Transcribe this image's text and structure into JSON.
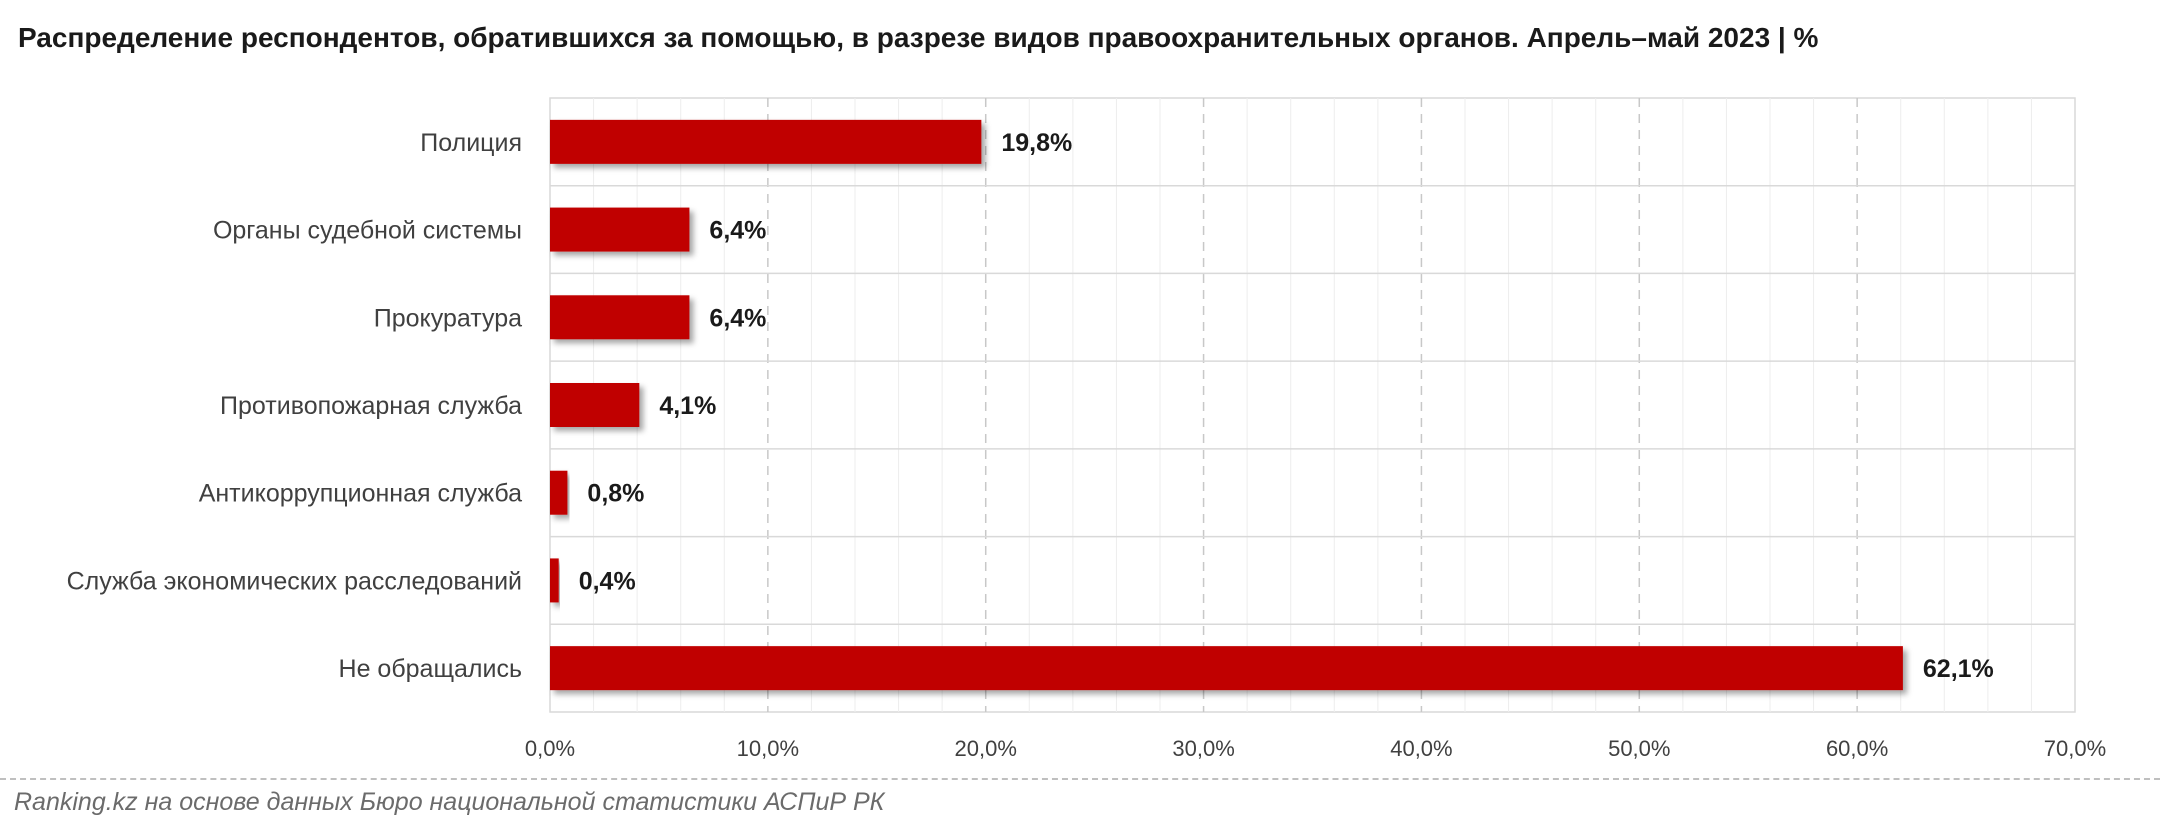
{
  "chart_data": {
    "type": "bar",
    "orientation": "horizontal",
    "title": "Распределение респондентов, обратившихся за помощью, в разрезе видов правоохранительных органов. Апрель–май 2023 | %",
    "categories": [
      "Полиция",
      "Органы судебной системы",
      "Прокуратура",
      "Противопожарная служба",
      "Антикоррупционная служба",
      "Служба экономических расследований",
      "Не обращались"
    ],
    "values": [
      19.8,
      6.4,
      6.4,
      4.1,
      0.8,
      0.4,
      62.1
    ],
    "value_labels": [
      "19,8%",
      "6,4%",
      "6,4%",
      "4,1%",
      "0,8%",
      "0,4%",
      "62,1%"
    ],
    "xlim": [
      0,
      70
    ],
    "x_ticks": [
      0,
      10,
      20,
      30,
      40,
      50,
      60,
      70
    ],
    "x_tick_labels": [
      "0,0%",
      "10,0%",
      "20,0%",
      "30,0%",
      "40,0%",
      "50,0%",
      "60,0%",
      "70,0%"
    ],
    "xlabel": "",
    "ylabel": "",
    "grid": true,
    "legend": "none",
    "bar_color": "#c00000"
  },
  "source": "Ranking.kz на основе данных Бюро национальной статистики АСПиР РК"
}
